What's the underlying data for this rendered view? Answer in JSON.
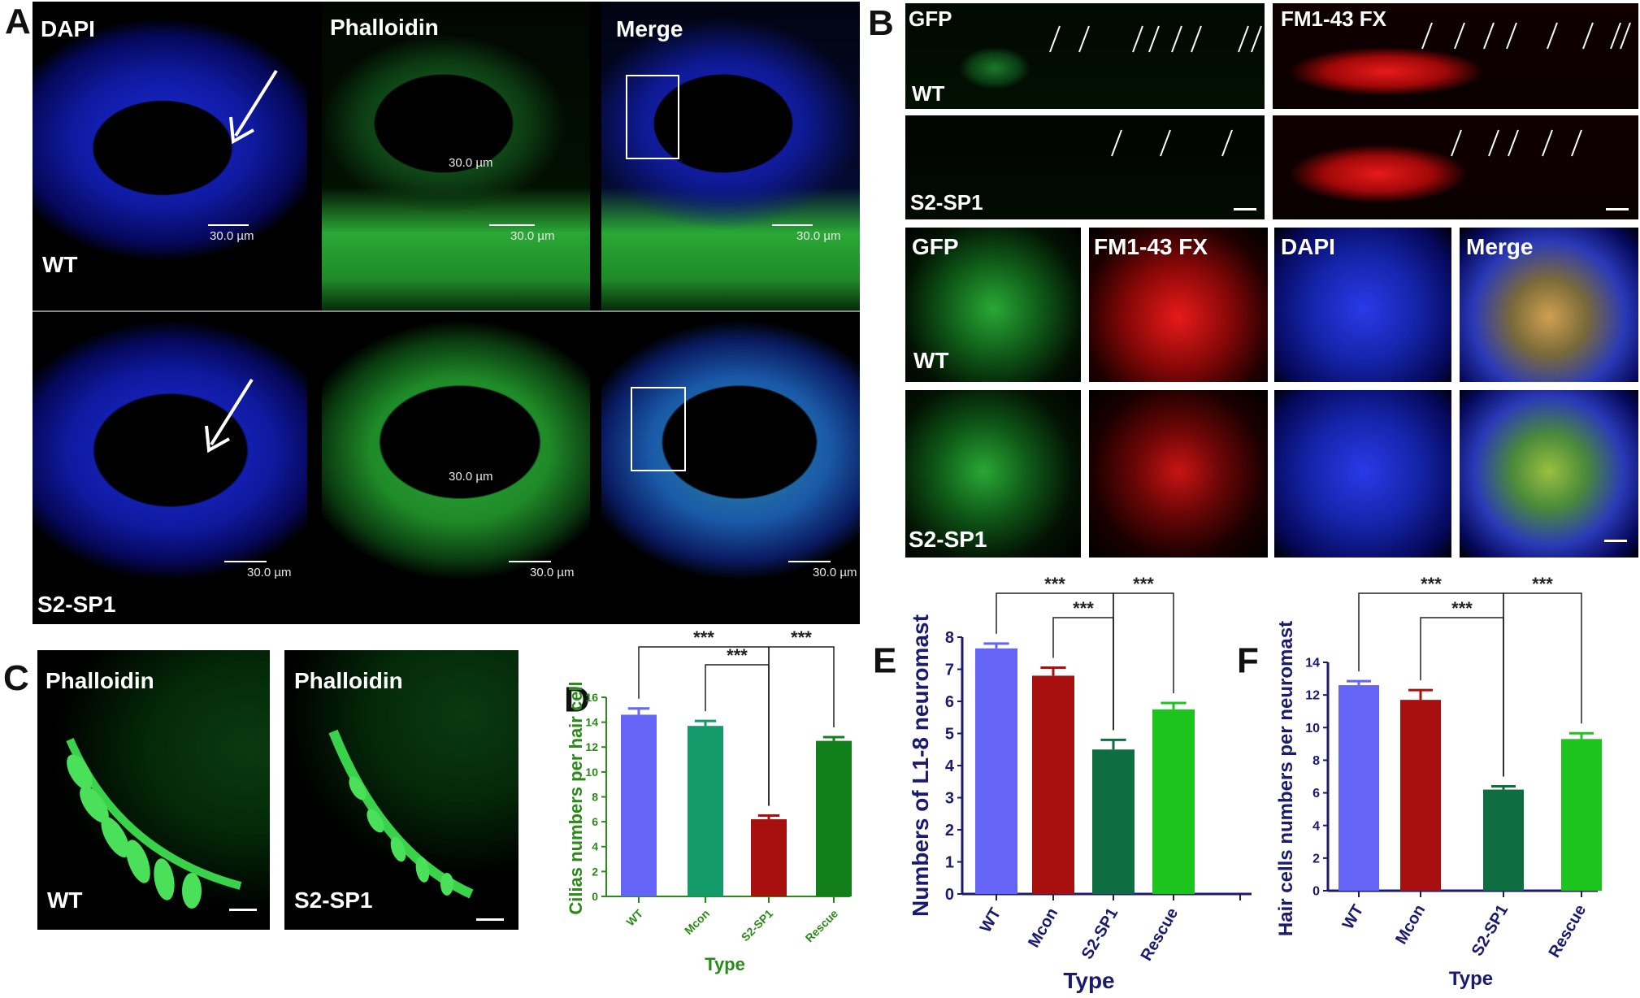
{
  "panels": {
    "A": {
      "letter": "A",
      "columns": [
        "DAPI",
        "Phalloidin",
        "Merge"
      ],
      "rows": [
        "WT",
        "S2-SP1"
      ],
      "scale_label": "30.0 µm",
      "inner_scale_row1": "30.0 µm",
      "inner_scale_row2": "30.0 µm"
    },
    "B": {
      "letter": "B",
      "top_left_label": "GFP",
      "top_right_label": "FM1-43 FX",
      "row_labels": [
        "WT",
        "S2-SP1"
      ],
      "bottom_columns": [
        "GFP",
        "FM1-43 FX",
        "DAPI",
        "Merge"
      ]
    },
    "C": {
      "letter": "C",
      "titles": [
        "Phalloidin",
        "Phalloidin"
      ],
      "rows": [
        "WT",
        "S2-SP1"
      ]
    }
  },
  "charts": [
    {
      "letter": "D",
      "chart_data": {
        "type": "bar",
        "categories": [
          "WT",
          "Mcon",
          "S2-SP1",
          "Rescue"
        ],
        "values": [
          14.6,
          13.7,
          6.2,
          12.5
        ],
        "errors": [
          0.5,
          0.4,
          0.3,
          0.3
        ],
        "colors": [
          "#6464f6",
          "#129a6a",
          "#a80f0f",
          "#117f1a"
        ],
        "xlabel": "Type",
        "ylabel": "Cilias numbers per hair cell",
        "ylim": [
          0,
          16
        ],
        "yticks": [
          0,
          2,
          4,
          6,
          8,
          10,
          12,
          14,
          16
        ],
        "significance": [
          "***",
          "***",
          "***"
        ]
      }
    },
    {
      "letter": "E",
      "chart_data": {
        "type": "bar",
        "categories": [
          "WT",
          "Mcon",
          "S2-SP1",
          "Rescue"
        ],
        "values": [
          7.65,
          6.8,
          4.5,
          5.75
        ],
        "errors": [
          0.15,
          0.25,
          0.3,
          0.2
        ],
        "colors": [
          "#6464f6",
          "#a80f0f",
          "#0e6e42",
          "#1ec41e"
        ],
        "xlabel": "Type",
        "ylabel": "Numbers of L1-8 neuromast",
        "ylim": [
          0,
          8
        ],
        "yticks": [
          0,
          1,
          2,
          3,
          4,
          5,
          6,
          7,
          8
        ],
        "significance": [
          "***",
          "***",
          "***"
        ]
      }
    },
    {
      "letter": "F",
      "chart_data": {
        "type": "bar",
        "categories": [
          "WT",
          "Mcon",
          "S2-SP1",
          "Rescue"
        ],
        "values": [
          12.6,
          11.7,
          6.2,
          9.3
        ],
        "errors": [
          0.25,
          0.6,
          0.2,
          0.35
        ],
        "colors": [
          "#6464f6",
          "#a80f0f",
          "#0e6e42",
          "#1ec41e"
        ],
        "xlabel": "Type",
        "ylabel": "Hair cells numbers per neuromast",
        "ylim": [
          0,
          14
        ],
        "yticks": [
          0,
          2,
          4,
          6,
          8,
          10,
          12,
          14
        ],
        "significance": [
          "***",
          "***",
          "***"
        ]
      }
    }
  ],
  "colors": {
    "dapi": "#1a28c8",
    "phalloidin": "#22c83a",
    "fm": "#e01818",
    "axis_D": "#2a8a18",
    "axis_EF": "#1a1a6e"
  }
}
